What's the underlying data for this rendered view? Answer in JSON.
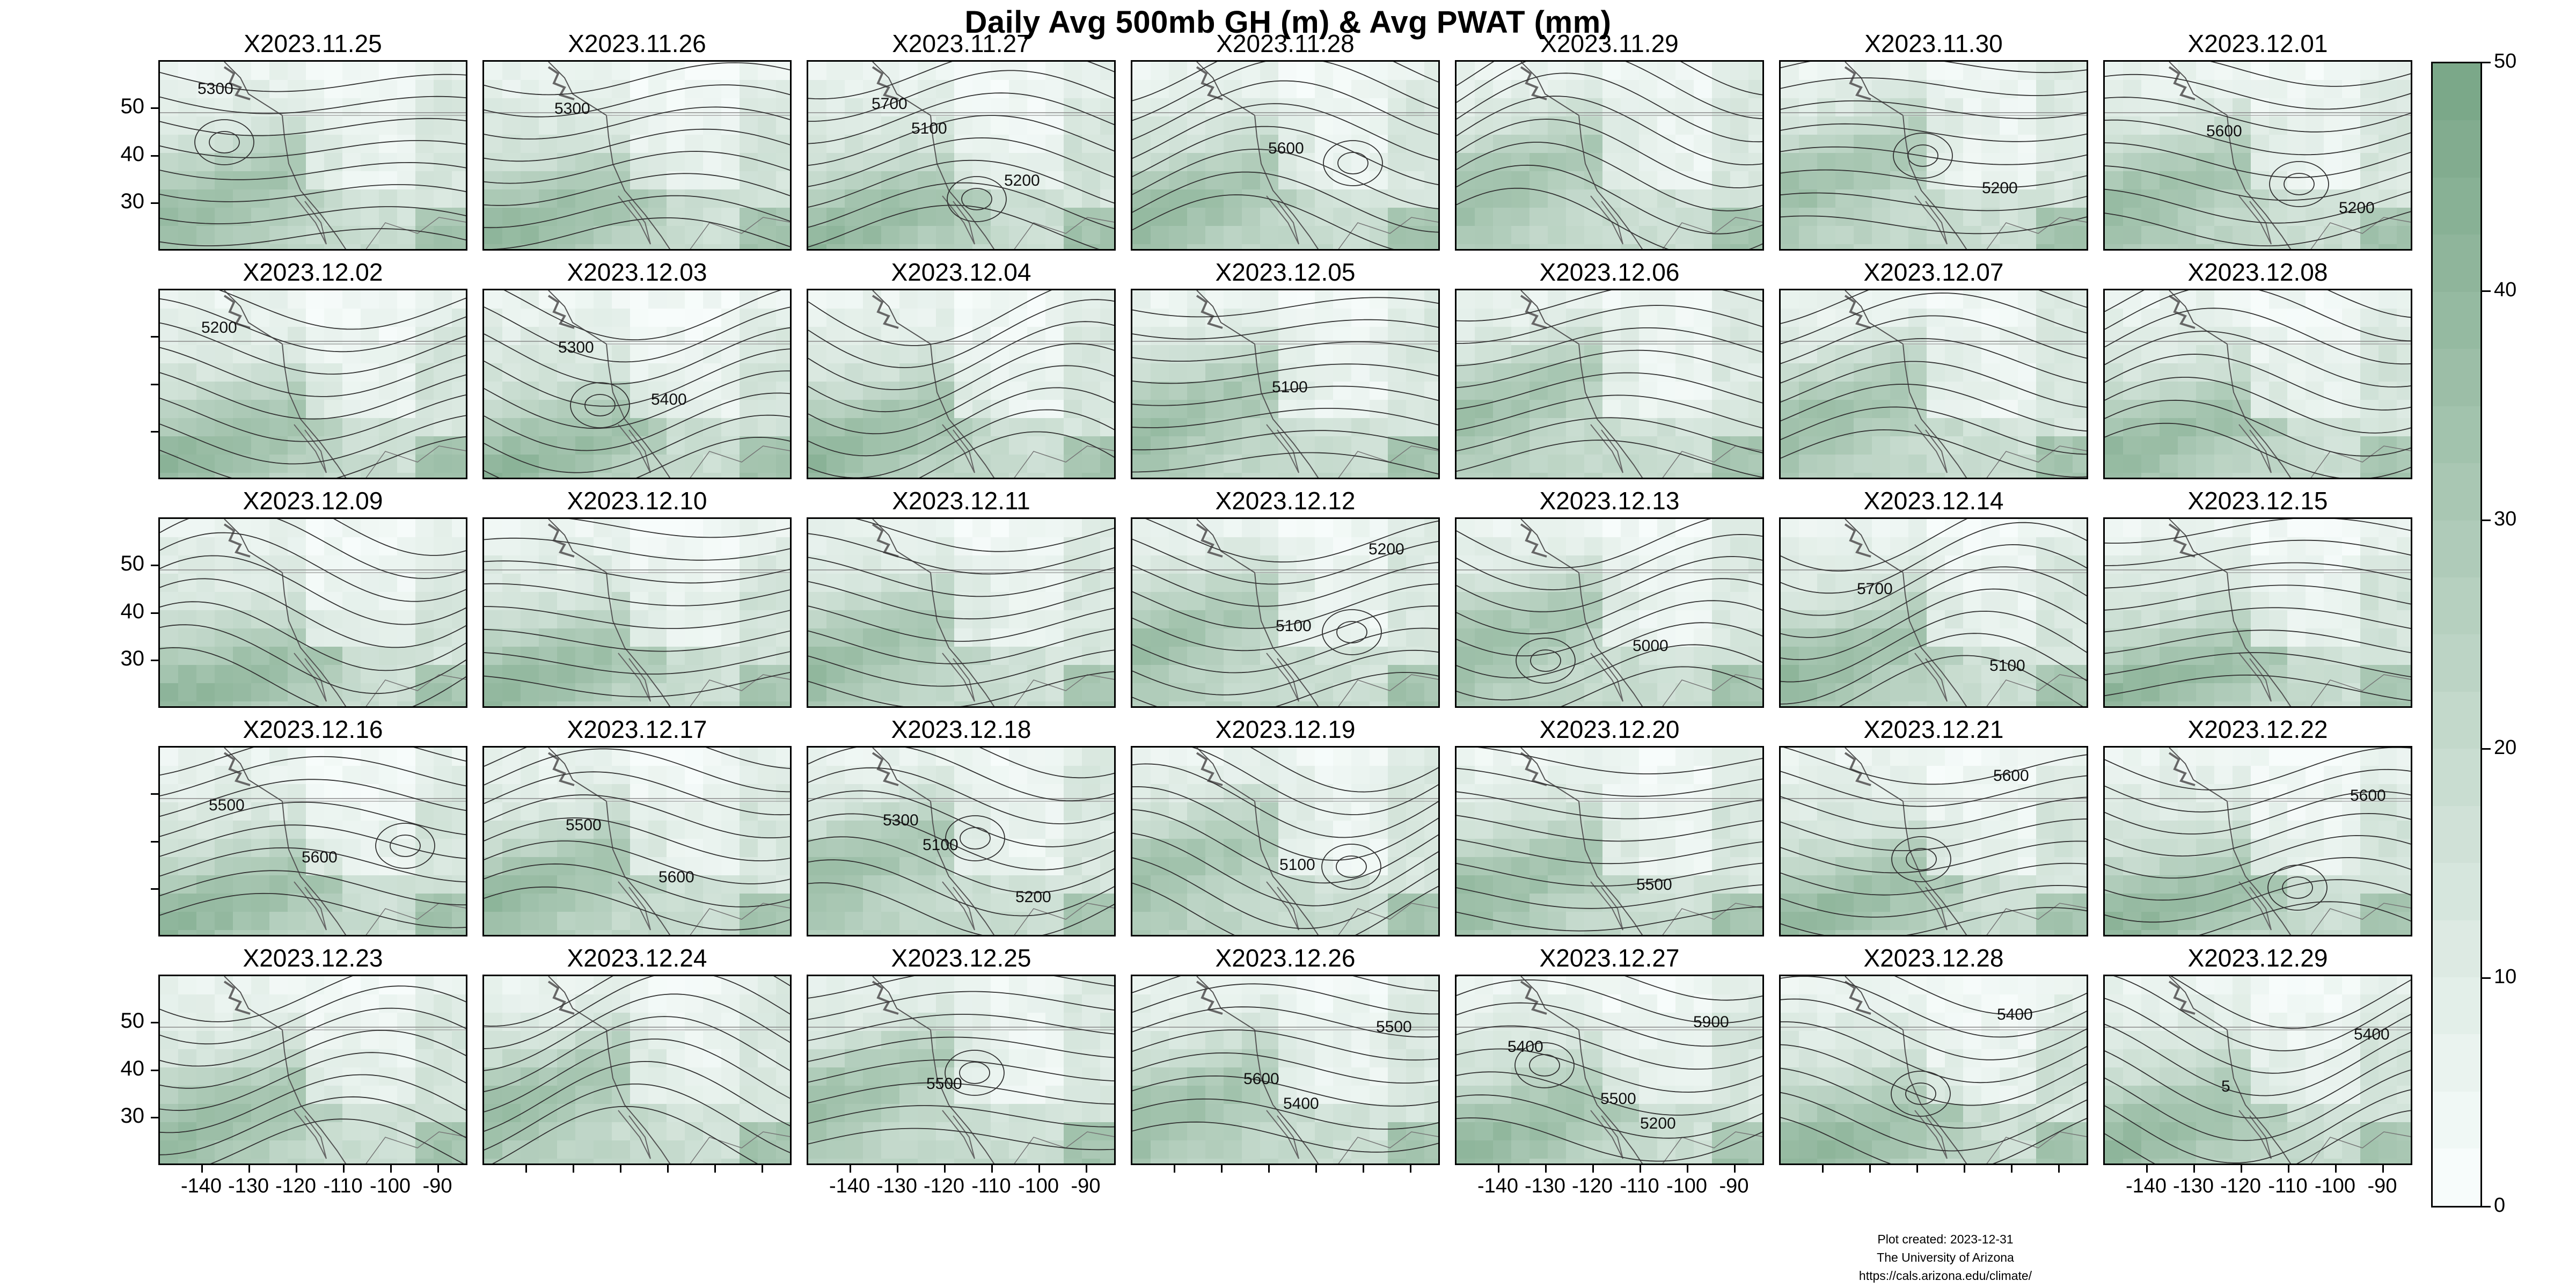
{
  "title": "Daily Avg 500mb GH (m) & Avg PWAT (mm)",
  "panels": [
    {
      "date": "X2023.11.25",
      "contours": [
        "5300"
      ]
    },
    {
      "date": "X2023.11.26",
      "contours": [
        "5300"
      ]
    },
    {
      "date": "X2023.11.27",
      "contours": [
        "5100",
        "5200",
        "5700"
      ]
    },
    {
      "date": "X2023.11.28",
      "contours": [
        "5600"
      ]
    },
    {
      "date": "X2023.11.29",
      "contours": []
    },
    {
      "date": "X2023.11.30",
      "contours": [
        "5200"
      ]
    },
    {
      "date": "X2023.12.01",
      "contours": [
        "5200",
        "5600"
      ]
    },
    {
      "date": "X2023.12.02",
      "contours": [
        "5200"
      ]
    },
    {
      "date": "X2023.12.03",
      "contours": [
        "5300",
        "5400"
      ]
    },
    {
      "date": "X2023.12.04",
      "contours": []
    },
    {
      "date": "X2023.12.05",
      "contours": [
        "5100"
      ]
    },
    {
      "date": "X2023.12.06",
      "contours": []
    },
    {
      "date": "X2023.12.07",
      "contours": []
    },
    {
      "date": "X2023.12.08",
      "contours": []
    },
    {
      "date": "X2023.12.09",
      "contours": []
    },
    {
      "date": "X2023.12.10",
      "contours": []
    },
    {
      "date": "X2023.12.11",
      "contours": []
    },
    {
      "date": "X2023.12.12",
      "contours": [
        "5100",
        "5200"
      ]
    },
    {
      "date": "X2023.12.13",
      "contours": [
        "5000"
      ]
    },
    {
      "date": "X2023.12.14",
      "contours": [
        "5100",
        "5700"
      ]
    },
    {
      "date": "X2023.12.15",
      "contours": []
    },
    {
      "date": "X2023.12.16",
      "contours": [
        "5500",
        "5600"
      ]
    },
    {
      "date": "X2023.12.17",
      "contours": [
        "5500",
        "5600"
      ]
    },
    {
      "date": "X2023.12.18",
      "contours": [
        "5100",
        "5200",
        "5300"
      ]
    },
    {
      "date": "X2023.12.19",
      "contours": [
        "5100"
      ]
    },
    {
      "date": "X2023.12.20",
      "contours": [
        "5500"
      ]
    },
    {
      "date": "X2023.12.21",
      "contours": [
        "5600"
      ]
    },
    {
      "date": "X2023.12.22",
      "contours": [
        "5600"
      ]
    },
    {
      "date": "X2023.12.23",
      "contours": []
    },
    {
      "date": "X2023.12.24",
      "contours": []
    },
    {
      "date": "X2023.12.25",
      "contours": [
        "5500"
      ]
    },
    {
      "date": "X2023.12.26",
      "contours": [
        "5400",
        "5500",
        "5600"
      ]
    },
    {
      "date": "X2023.12.27",
      "contours": [
        "5200",
        "5400",
        "5500",
        "5900"
      ]
    },
    {
      "date": "X2023.12.28",
      "contours": [
        "5400"
      ]
    },
    {
      "date": "X2023.12.29",
      "contours": [
        "5400",
        "5"
      ]
    }
  ],
  "lat_ticks": [
    "50",
    "40",
    "30"
  ],
  "lon_ticks": [
    "-140",
    "-130",
    "-120",
    "-110",
    "-100",
    "-90"
  ],
  "colorbar": {
    "ticks": [
      "50",
      "40",
      "30",
      "20",
      "10",
      "0"
    ],
    "range": [
      0,
      50
    ],
    "low_color": "#f7fcfb",
    "high_color": "#7ba889"
  },
  "credit": {
    "line1": "Plot created: 2023-12-31",
    "line2": "The University of Arizona",
    "line3": "https://cals.arizona.edu/climate/"
  }
}
